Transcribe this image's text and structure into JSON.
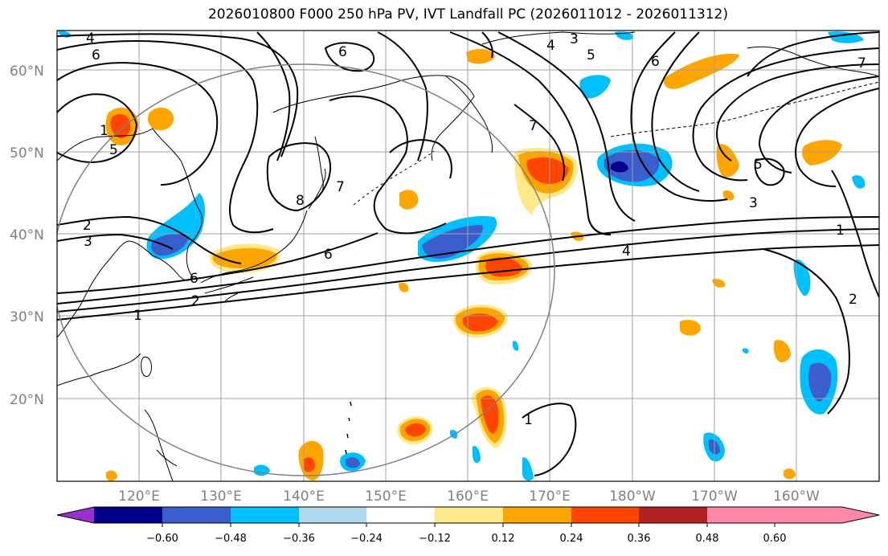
{
  "title": "2026010800 F000 250 hPa PV, IVT Landfall PC (2026011012 - 2026011312)",
  "lat_labels": [
    "60°N",
    "50°N",
    "40°N",
    "30°N",
    "20°N"
  ],
  "lon_labels": [
    "120°E",
    "130°E",
    "140°E",
    "150°E",
    "160°E",
    "170°E",
    "180°W",
    "170°W",
    "160°W"
  ],
  "contour_labels": [
    "4",
    "6",
    "1",
    "5",
    "2",
    "3",
    "6",
    "8",
    "7",
    "6",
    "4",
    "3",
    "5",
    "6",
    "7",
    "7",
    "5",
    "3",
    "1",
    "4",
    "2",
    "2",
    "1",
    "1",
    "6"
  ],
  "colorbar": {
    "tick_labels": [
      "−0.60",
      "−0.48",
      "−0.36",
      "−0.24",
      "−0.12",
      "0.12",
      "0.24",
      "0.36",
      "0.48",
      "0.60"
    ],
    "colors": [
      "#9932cc",
      "#00008b",
      "#3a5fcd",
      "#00bfff",
      "#add8f0",
      "#ffffff",
      "#ffe88a",
      "#ffa500",
      "#ff4500",
      "#b22222",
      "#ff88aa"
    ]
  },
  "colors": {
    "frame": "#000000",
    "grid": "#a0a0a0",
    "radius_circle": "#808080",
    "coast": "#000000",
    "contour": "#000000"
  }
}
